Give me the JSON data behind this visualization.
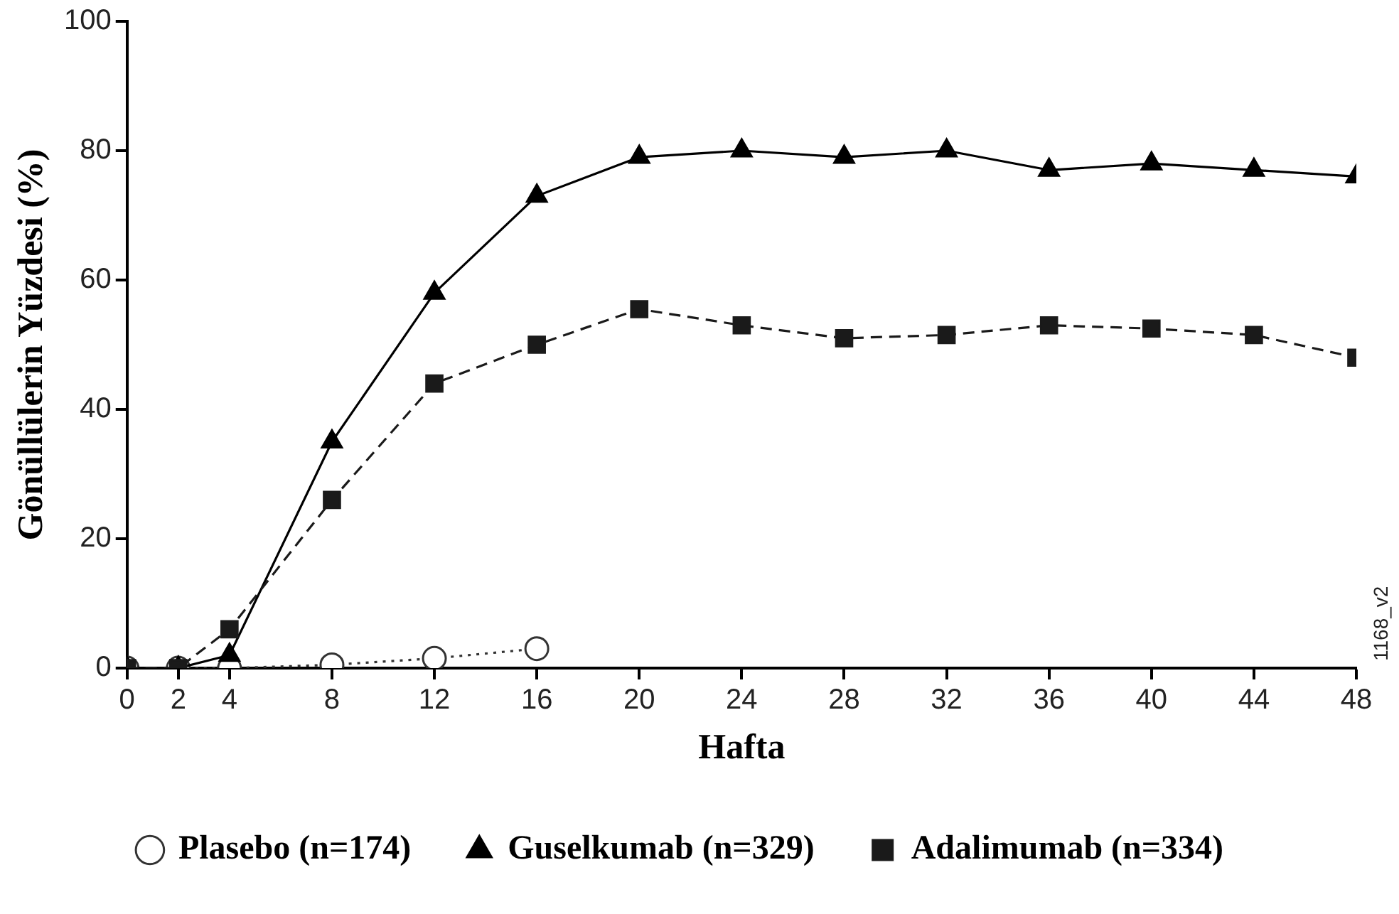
{
  "chart_data": {
    "type": "line",
    "xlabel": "Hafta",
    "ylabel": "Gönüllülerin Yüzdesi (%)",
    "x": [
      0,
      2,
      4,
      8,
      12,
      16,
      20,
      24,
      28,
      32,
      36,
      40,
      44,
      48
    ],
    "xlim": [
      0,
      48
    ],
    "xticks": [
      0,
      2,
      4,
      8,
      12,
      16,
      20,
      24,
      28,
      32,
      36,
      40,
      44,
      48
    ],
    "ylim": [
      0,
      100
    ],
    "yticks": [
      0,
      20,
      40,
      60,
      80,
      100
    ],
    "grid": false,
    "legend": "bottom",
    "annotations": [
      "1168_v2"
    ],
    "series": [
      {
        "name": "Plasebo (n=174)",
        "color": "#333333",
        "marker": "circle",
        "line_style": "dotted",
        "x": [
          0,
          2,
          4,
          8,
          12,
          16
        ],
        "values": [
          0,
          0,
          0,
          0.5,
          1.5,
          3
        ]
      },
      {
        "name": "Guselkumab (n=329)",
        "color": "#000000",
        "marker": "triangle",
        "line_style": "solid",
        "values": [
          0,
          0,
          2,
          35,
          58,
          73,
          79,
          80,
          79,
          80,
          77,
          78,
          77,
          76
        ]
      },
      {
        "name": "Adalimumab (n=334)",
        "color": "#1a1a1a",
        "marker": "square",
        "line_style": "dashed",
        "values": [
          0,
          0,
          6,
          26,
          44,
          50,
          55.5,
          53,
          51,
          51.5,
          53,
          52.5,
          51.5,
          48
        ]
      }
    ]
  }
}
